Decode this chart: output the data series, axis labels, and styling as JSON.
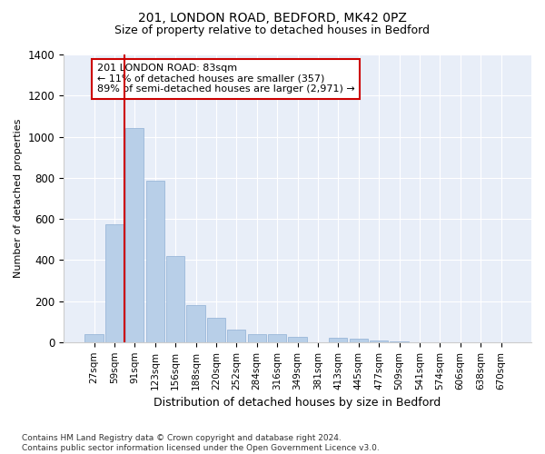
{
  "title1": "201, LONDON ROAD, BEDFORD, MK42 0PZ",
  "title2": "Size of property relative to detached houses in Bedford",
  "xlabel": "Distribution of detached houses by size in Bedford",
  "ylabel": "Number of detached properties",
  "categories": [
    "27sqm",
    "59sqm",
    "91sqm",
    "123sqm",
    "156sqm",
    "188sqm",
    "220sqm",
    "252sqm",
    "284sqm",
    "316sqm",
    "349sqm",
    "381sqm",
    "413sqm",
    "445sqm",
    "477sqm",
    "509sqm",
    "541sqm",
    "574sqm",
    "606sqm",
    "638sqm",
    "670sqm"
  ],
  "values": [
    40,
    575,
    1040,
    785,
    420,
    180,
    120,
    60,
    40,
    40,
    25,
    0,
    20,
    15,
    10,
    5,
    0,
    0,
    0,
    0,
    0
  ],
  "bar_color": "#b8cfe8",
  "bar_edge_color": "#8fb0d4",
  "vline_x_index": 1.5,
  "vline_color": "#cc0000",
  "annotation_text": "201 LONDON ROAD: 83sqm\n← 11% of detached houses are smaller (357)\n89% of semi-detached houses are larger (2,971) →",
  "annotation_box_color": "#ffffff",
  "annotation_border_color": "#cc0000",
  "ylim": [
    0,
    1400
  ],
  "yticks": [
    0,
    200,
    400,
    600,
    800,
    1000,
    1200,
    1400
  ],
  "footnote": "Contains HM Land Registry data © Crown copyright and database right 2024.\nContains public sector information licensed under the Open Government Licence v3.0.",
  "bg_color": "#ffffff",
  "axes_bg_color": "#e8eef8",
  "grid_color": "#ffffff",
  "title1_fontsize": 10,
  "title2_fontsize": 9
}
